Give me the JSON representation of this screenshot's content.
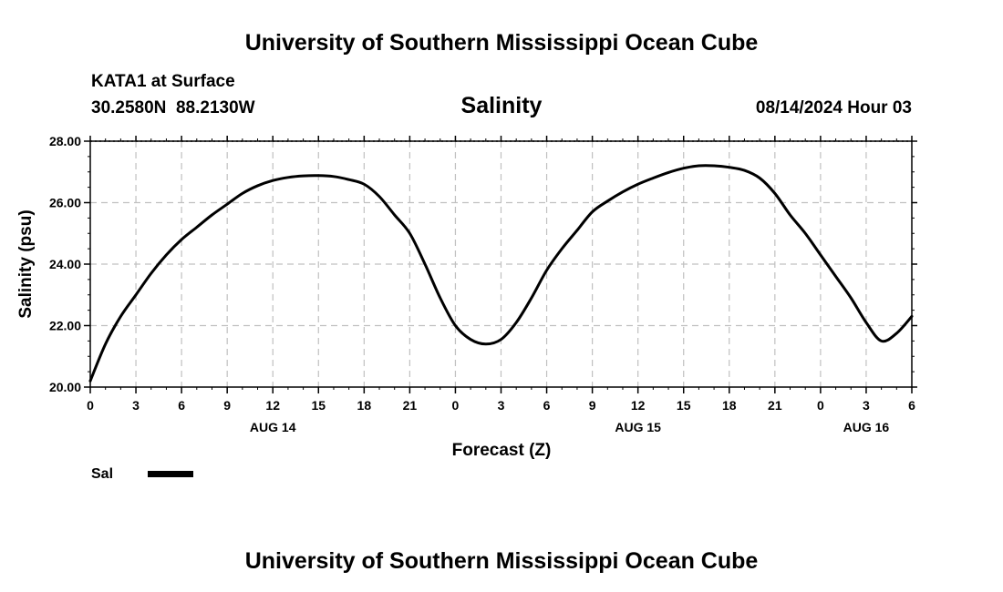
{
  "header": {
    "title": "University of Southern Mississippi Ocean Cube",
    "footer_title": "University of Southern Mississippi Ocean Cube",
    "station": "KATA1 at Surface",
    "coords": "30.2580N  88.2130W",
    "datetime": "08/14/2024 Hour 03"
  },
  "colors": {
    "line": "#000000",
    "grid": "#c0c0c0",
    "background": "#ffffff"
  },
  "chart_data": {
    "type": "line",
    "title": "Salinity",
    "xlabel": "Forecast (Z)",
    "ylabel": "Salinity (psu)",
    "xlim": [
      0,
      54
    ],
    "ylim": [
      20,
      28
    ],
    "x_ticks": [
      0,
      3,
      6,
      9,
      12,
      15,
      18,
      21,
      24,
      27,
      30,
      33,
      36,
      39,
      42,
      45,
      48,
      51,
      54
    ],
    "x_tick_labels": [
      "0",
      "3",
      "6",
      "9",
      "12",
      "15",
      "18",
      "21",
      "0",
      "3",
      "6",
      "9",
      "12",
      "15",
      "18",
      "21",
      "0",
      "3",
      "6"
    ],
    "y_ticks": [
      20,
      22,
      24,
      26,
      28
    ],
    "y_tick_labels": [
      "20.00",
      "22.00",
      "24.00",
      "26.00",
      "28.00"
    ],
    "day_labels": [
      {
        "x": 12,
        "text": "AUG 14"
      },
      {
        "x": 36,
        "text": "AUG 15"
      },
      {
        "x": 51,
        "text": "AUG 16"
      }
    ],
    "grid": true,
    "legend": {
      "position": "bottom-left",
      "entries": [
        "Sal"
      ]
    },
    "series": [
      {
        "name": "Sal",
        "x": [
          0,
          1,
          2,
          3,
          4,
          5,
          6,
          7,
          8,
          9,
          10,
          11,
          12,
          13,
          14,
          15,
          16,
          17,
          18,
          19,
          20,
          21,
          22,
          23,
          24,
          25,
          26,
          27,
          28,
          29,
          30,
          31,
          32,
          33,
          34,
          35,
          36,
          37,
          38,
          39,
          40,
          41,
          42,
          43,
          44,
          45,
          46,
          47,
          48,
          49,
          50,
          51,
          52,
          53,
          54
        ],
        "values": [
          20.2,
          21.4,
          22.3,
          23.0,
          23.7,
          24.3,
          24.8,
          25.2,
          25.6,
          25.95,
          26.3,
          26.55,
          26.72,
          26.82,
          26.87,
          26.88,
          26.85,
          26.75,
          26.6,
          26.2,
          25.6,
          25.0,
          24.0,
          22.9,
          22.0,
          21.55,
          21.4,
          21.55,
          22.1,
          22.9,
          23.8,
          24.5,
          25.1,
          25.7,
          26.05,
          26.35,
          26.6,
          26.8,
          26.98,
          27.12,
          27.2,
          27.2,
          27.15,
          27.05,
          26.8,
          26.3,
          25.6,
          25.0,
          24.3,
          23.6,
          22.9,
          22.1,
          21.5,
          21.75,
          22.3
        ]
      }
    ]
  }
}
